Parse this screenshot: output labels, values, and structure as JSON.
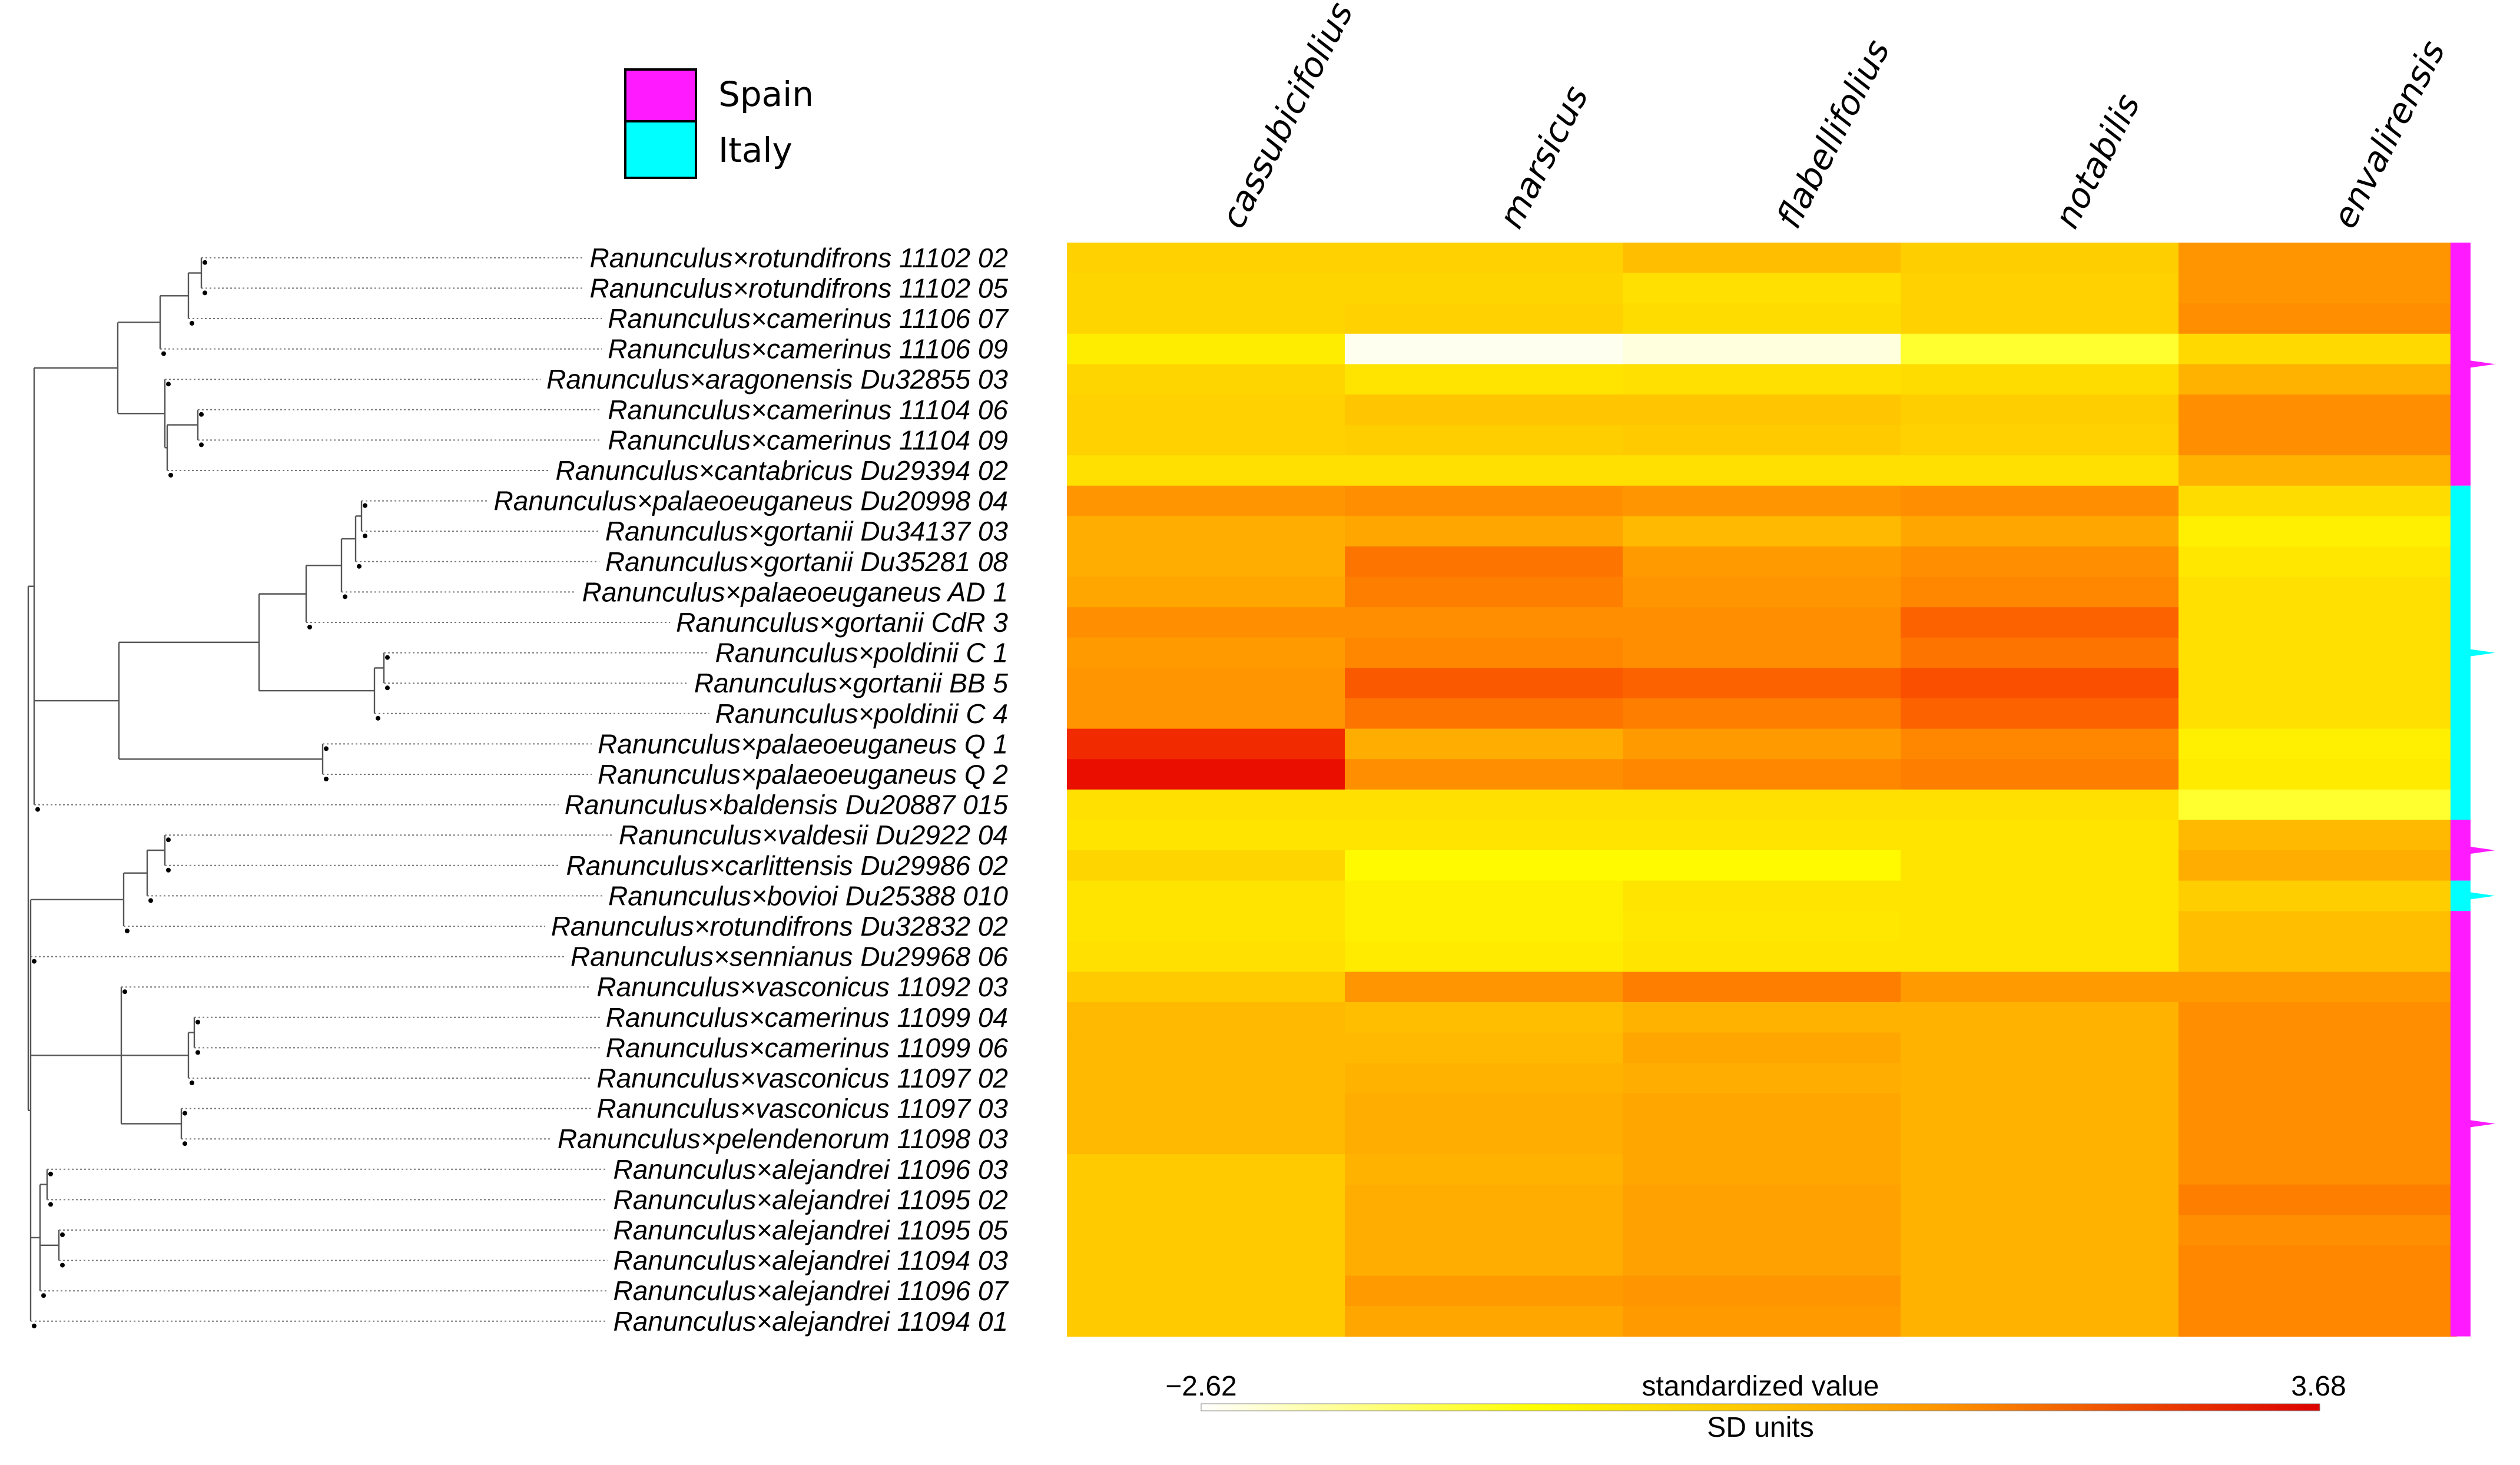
{
  "chart_data": {
    "type": "heatmap",
    "columns": [
      "cassubicifolius",
      "marsicus",
      "flabellifolius",
      "notabilis",
      "envalirensis"
    ],
    "rows": [
      "Ranunculus×rotundifrons 11102 02",
      "Ranunculus×rotundifrons 11102 05",
      "Ranunculus×camerinus 11106 07",
      "Ranunculus×camerinus 11106 09",
      "Ranunculus×aragonensis Du32855 03",
      "Ranunculus×camerinus 11104 06",
      "Ranunculus×camerinus 11104 09",
      "Ranunculus×cantabricus Du29394 02",
      "Ranunculus×palaeoeuganeus Du20998 04",
      "Ranunculus×gortanii Du34137 03",
      "Ranunculus×gortanii Du35281 08",
      "Ranunculus×palaeoeuganeus AD 1",
      "Ranunculus×gortanii CdR 3",
      "Ranunculus×poldinii C 1",
      "Ranunculus×gortanii BB 5",
      "Ranunculus×poldinii C 4",
      "Ranunculus×palaeoeuganeus Q 1",
      "Ranunculus×palaeoeuganeus Q 2",
      "Ranunculus×baldensis Du20887 015",
      "Ranunculus×valdesii Du2922 04",
      "Ranunculus×carlittensis Du29986 02",
      "Ranunculus×bovioi Du25388 010",
      "Ranunculus×rotundifrons Du32832 02",
      "Ranunculus×sennianus Du29968 06",
      "Ranunculus×vasconicus 11092 03",
      "Ranunculus×camerinus 11099 04",
      "Ranunculus×camerinus 11099 06",
      "Ranunculus×vasconicus 11097 02",
      "Ranunculus×vasconicus 11097 03",
      "Ranunculus×pelendenorum 11098 03",
      "Ranunculus×alejandrei 11096 03",
      "Ranunculus×alejandrei 11095 02",
      "Ranunculus×alejandrei 11095 05",
      "Ranunculus×alejandrei 11094 03",
      "Ranunculus×alejandrei 11096 07",
      "Ranunculus×alejandrei 11094 01"
    ],
    "values": [
      [
        0.5,
        0.5,
        0.58,
        0.52,
        0.72
      ],
      [
        0.48,
        0.48,
        0.42,
        0.5,
        0.72
      ],
      [
        0.48,
        0.5,
        0.44,
        0.5,
        0.74
      ],
      [
        0.35,
        0.0,
        0.02,
        0.2,
        0.46
      ],
      [
        0.48,
        0.4,
        0.42,
        0.44,
        0.62
      ],
      [
        0.5,
        0.56,
        0.56,
        0.52,
        0.74
      ],
      [
        0.5,
        0.52,
        0.54,
        0.5,
        0.74
      ],
      [
        0.42,
        0.42,
        0.42,
        0.42,
        0.62
      ],
      [
        0.72,
        0.74,
        0.72,
        0.74,
        0.44
      ],
      [
        0.64,
        0.66,
        0.6,
        0.66,
        0.34
      ],
      [
        0.64,
        0.8,
        0.7,
        0.74,
        0.38
      ],
      [
        0.66,
        0.78,
        0.72,
        0.76,
        0.42
      ],
      [
        0.74,
        0.74,
        0.74,
        0.84,
        0.42
      ],
      [
        0.7,
        0.76,
        0.74,
        0.8,
        0.42
      ],
      [
        0.72,
        0.86,
        0.84,
        0.88,
        0.42
      ],
      [
        0.72,
        0.8,
        0.78,
        0.84,
        0.42
      ],
      [
        0.94,
        0.64,
        0.7,
        0.76,
        0.34
      ],
      [
        0.98,
        0.74,
        0.76,
        0.78,
        0.36
      ],
      [
        0.42,
        0.42,
        0.42,
        0.42,
        0.2
      ],
      [
        0.4,
        0.4,
        0.4,
        0.4,
        0.6
      ],
      [
        0.48,
        0.28,
        0.28,
        0.4,
        0.64
      ],
      [
        0.4,
        0.34,
        0.4,
        0.4,
        0.52
      ],
      [
        0.4,
        0.34,
        0.38,
        0.4,
        0.58
      ],
      [
        0.42,
        0.36,
        0.4,
        0.4,
        0.58
      ],
      [
        0.54,
        0.72,
        0.78,
        0.7,
        0.7
      ],
      [
        0.6,
        0.58,
        0.62,
        0.62,
        0.74
      ],
      [
        0.6,
        0.6,
        0.66,
        0.62,
        0.74
      ],
      [
        0.6,
        0.62,
        0.64,
        0.62,
        0.74
      ],
      [
        0.6,
        0.64,
        0.66,
        0.62,
        0.74
      ],
      [
        0.6,
        0.64,
        0.66,
        0.62,
        0.74
      ],
      [
        0.54,
        0.62,
        0.66,
        0.62,
        0.74
      ],
      [
        0.54,
        0.64,
        0.68,
        0.62,
        0.78
      ],
      [
        0.54,
        0.64,
        0.68,
        0.62,
        0.74
      ],
      [
        0.54,
        0.64,
        0.68,
        0.62,
        0.76
      ],
      [
        0.54,
        0.7,
        0.72,
        0.62,
        0.76
      ],
      [
        0.54,
        0.66,
        0.7,
        0.62,
        0.76
      ]
    ],
    "country_bars": [
      {
        "country": "Spain",
        "color": "#ff1aff",
        "rows": "1-8"
      },
      {
        "country": "Italy",
        "color": "#00ffff",
        "rows": "9-19"
      },
      {
        "country": "Spain",
        "color": "#ff1aff",
        "rows": "20-21"
      },
      {
        "country": "Italy",
        "color": "#00ffff",
        "rows": "22"
      },
      {
        "country": "Spain",
        "color": "#ff1aff",
        "rows": "23-36"
      }
    ],
    "legend": [
      {
        "label": "Spain",
        "color": "#ff1aff"
      },
      {
        "label": "Italy",
        "color": "#00ffff"
      }
    ],
    "colorbar": {
      "min_label": "−2.62",
      "max_label": "3.68",
      "title": "standardized value",
      "units": "SD units",
      "min": -2.62,
      "max": 3.68
    }
  }
}
